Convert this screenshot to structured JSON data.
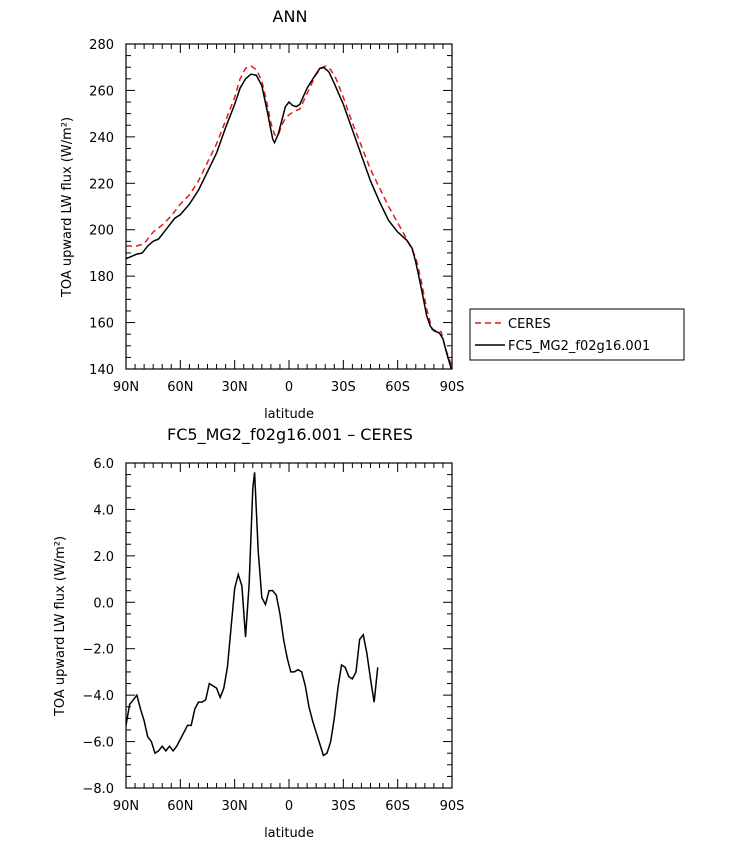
{
  "chart_data": [
    {
      "type": "line",
      "title": "ANN",
      "xlabel": "latitude",
      "ylabel": "TOA upward LW flux (W/m²)",
      "xlim": [
        90,
        -90
      ],
      "ylim": [
        140,
        280
      ],
      "x_ticks": [
        {
          "value": 90,
          "label": "90N"
        },
        {
          "value": 60,
          "label": "60N"
        },
        {
          "value": 30,
          "label": "30N"
        },
        {
          "value": 0,
          "label": "0"
        },
        {
          "value": -30,
          "label": "30S"
        },
        {
          "value": -60,
          "label": "60S"
        },
        {
          "value": -90,
          "label": "90S"
        }
      ],
      "y_ticks": [
        {
          "value": 280,
          "label": "280"
        },
        {
          "value": 260,
          "label": "260"
        },
        {
          "value": 240,
          "label": "240"
        },
        {
          "value": 220,
          "label": "220"
        },
        {
          "value": 200,
          "label": "200"
        },
        {
          "value": 180,
          "label": "180"
        },
        {
          "value": 160,
          "label": "160"
        },
        {
          "value": 140,
          "label": "140"
        }
      ],
      "legend": {
        "placement": "right"
      },
      "series": [
        {
          "name": "CERES",
          "color": "#e8191a",
          "dash": true,
          "points": [
            [
              90,
              193
            ],
            [
              84,
              193
            ],
            [
              80,
              194
            ],
            [
              75,
              199
            ],
            [
              70,
              202
            ],
            [
              65,
              206
            ],
            [
              60,
              211
            ],
            [
              55,
              215
            ],
            [
              50,
              221
            ],
            [
              45,
              229
            ],
            [
              40,
              237
            ],
            [
              35,
              247
            ],
            [
              30,
              257
            ],
            [
              27,
              265
            ],
            [
              24,
              269.5
            ],
            [
              21,
              270.5
            ],
            [
              18,
              269
            ],
            [
              15,
              264
            ],
            [
              12,
              254
            ],
            [
              10,
              246
            ],
            [
              8,
              241
            ],
            [
              6,
              240.5
            ],
            [
              4,
              245
            ],
            [
              2,
              248
            ],
            [
              0,
              249.5
            ],
            [
              -3,
              251
            ],
            [
              -6,
              252
            ],
            [
              -9,
              257
            ],
            [
              -12,
              262
            ],
            [
              -15,
              267
            ],
            [
              -18,
              269.5
            ],
            [
              -20,
              270.5
            ],
            [
              -23,
              269
            ],
            [
              -26,
              265
            ],
            [
              -30,
              257
            ],
            [
              -35,
              246
            ],
            [
              -40,
              236
            ],
            [
              -45,
              226
            ],
            [
              -50,
              218
            ],
            [
              -55,
              210
            ],
            [
              -60,
              203
            ],
            [
              -65,
              196
            ],
            [
              -70,
              188
            ],
            [
              -73,
              178
            ],
            [
              -76,
              166
            ],
            [
              -79,
              157
            ],
            [
              -82,
              156.5
            ],
            [
              -84,
              156
            ],
            [
              -86,
              150
            ],
            [
              -88,
              145
            ],
            [
              -90,
              141
            ]
          ]
        },
        {
          "name": "FC5_MG2_f02g16.001",
          "color": "#000000",
          "dash": false,
          "points": [
            [
              90,
              187.5
            ],
            [
              87,
              188.5
            ],
            [
              84,
              189.5
            ],
            [
              81,
              190
            ],
            [
              78,
              193
            ],
            [
              75,
              195
            ],
            [
              72,
              196
            ],
            [
              69,
              199
            ],
            [
              66,
              202
            ],
            [
              63,
              205
            ],
            [
              60,
              206.5
            ],
            [
              55,
              211
            ],
            [
              50,
              217
            ],
            [
              45,
              225
            ],
            [
              40,
              233
            ],
            [
              35,
              244
            ],
            [
              30,
              254
            ],
            [
              27,
              261
            ],
            [
              24,
              265
            ],
            [
              21,
              267
            ],
            [
              18,
              266.5
            ],
            [
              15,
              262
            ],
            [
              12,
              251
            ],
            [
              10,
              243
            ],
            [
              9,
              239
            ],
            [
              8,
              237.5
            ],
            [
              6,
              241
            ],
            [
              4,
              247
            ],
            [
              2,
              253
            ],
            [
              0,
              255
            ],
            [
              -2,
              253.5
            ],
            [
              -4,
              253
            ],
            [
              -6,
              254
            ],
            [
              -10,
              261
            ],
            [
              -14,
              266
            ],
            [
              -17,
              269.5
            ],
            [
              -19,
              270
            ],
            [
              -22,
              268
            ],
            [
              -25,
              263
            ],
            [
              -30,
              254
            ],
            [
              -35,
              243
            ],
            [
              -40,
              232
            ],
            [
              -45,
              221
            ],
            [
              -50,
              212
            ],
            [
              -55,
              204
            ],
            [
              -60,
              199
            ],
            [
              -65,
              195.5
            ],
            [
              -68,
              192
            ],
            [
              -70,
              186
            ],
            [
              -73,
              175
            ],
            [
              -76,
              163
            ],
            [
              -78,
              158.5
            ],
            [
              -80,
              156.5
            ],
            [
              -83,
              155.5
            ],
            [
              -85,
              153
            ],
            [
              -87,
              147
            ],
            [
              -90,
              139
            ]
          ]
        }
      ]
    },
    {
      "type": "line",
      "title": "FC5_MG2_f02g16.001 – CERES",
      "xlabel": "latitude",
      "ylabel": "TOA upward LW flux (W/m²)",
      "xlim": [
        90,
        -90
      ],
      "ylim": [
        -8.0,
        6.0
      ],
      "x_ticks": [
        {
          "value": 90,
          "label": "90N"
        },
        {
          "value": 60,
          "label": "60N"
        },
        {
          "value": 30,
          "label": "30N"
        },
        {
          "value": 0,
          "label": "0"
        },
        {
          "value": -30,
          "label": "30S"
        },
        {
          "value": -60,
          "label": "60S"
        },
        {
          "value": -90,
          "label": "90S"
        }
      ],
      "y_ticks": [
        {
          "value": 6,
          "label": "6.0"
        },
        {
          "value": 4,
          "label": "4.0"
        },
        {
          "value": 2,
          "label": "2.0"
        },
        {
          "value": 0,
          "label": "0.0"
        },
        {
          "value": -2,
          "label": "−2.0"
        },
        {
          "value": -4,
          "label": "−4.0"
        },
        {
          "value": -6,
          "label": "−6.0"
        },
        {
          "value": -8,
          "label": "−8.0"
        }
      ],
      "series": [
        {
          "color": "#000000",
          "dash": false,
          "points": [
            [
              90,
              -5.3
            ],
            [
              88,
              -4.4
            ],
            [
              86,
              -4.2
            ],
            [
              84,
              -4.0
            ],
            [
              82,
              -4.6
            ],
            [
              80,
              -5.1
            ],
            [
              78,
              -5.8
            ],
            [
              76,
              -6.0
            ],
            [
              74,
              -6.5
            ],
            [
              72,
              -6.4
            ],
            [
              70,
              -6.2
            ],
            [
              68,
              -6.4
            ],
            [
              66,
              -6.2
            ],
            [
              64,
              -6.4
            ],
            [
              62,
              -6.2
            ],
            [
              60,
              -5.9
            ],
            [
              58,
              -5.6
            ],
            [
              56,
              -5.3
            ],
            [
              54,
              -5.3
            ],
            [
              52,
              -4.6
            ],
            [
              50,
              -4.3
            ],
            [
              48,
              -4.3
            ],
            [
              46,
              -4.2
            ],
            [
              44,
              -3.5
            ],
            [
              42,
              -3.6
            ],
            [
              40,
              -3.7
            ],
            [
              38,
              -4.1
            ],
            [
              36,
              -3.7
            ],
            [
              34,
              -2.8
            ],
            [
              32,
              -1.1
            ],
            [
              30,
              0.6
            ],
            [
              28,
              1.2
            ],
            [
              26,
              0.7
            ],
            [
              24,
              -1.5
            ],
            [
              22,
              0.8
            ],
            [
              20,
              4.9
            ],
            [
              19,
              5.6
            ],
            [
              17,
              2.2
            ],
            [
              15,
              0.2
            ],
            [
              13,
              -0.1
            ],
            [
              11,
              0.5
            ],
            [
              9,
              0.5
            ],
            [
              7,
              0.3
            ],
            [
              5,
              -0.5
            ],
            [
              3,
              -1.6
            ],
            [
              1,
              -2.4
            ],
            [
              -1,
              -3.0
            ],
            [
              -3,
              -3.0
            ],
            [
              -5,
              -2.9
            ],
            [
              -7,
              -3.0
            ],
            [
              -9,
              -3.6
            ],
            [
              -11,
              -4.5
            ],
            [
              -13,
              -5.1
            ],
            [
              -15,
              -5.6
            ],
            [
              -17,
              -6.1
            ],
            [
              -19,
              -6.6
            ],
            [
              -21,
              -6.5
            ],
            [
              -23,
              -6.0
            ],
            [
              -25,
              -5.0
            ],
            [
              -27,
              -3.7
            ],
            [
              -29,
              -2.7
            ],
            [
              -31,
              -2.8
            ],
            [
              -33,
              -3.2
            ],
            [
              -35,
              -3.3
            ],
            [
              -37,
              -3.0
            ],
            [
              -39,
              -1.6
            ],
            [
              -41,
              -1.4
            ],
            [
              -43,
              -2.2
            ],
            [
              -45,
              -3.3
            ],
            [
              -47,
              -4.3
            ],
            [
              -49,
              -2.8
            ]
          ]
        }
      ]
    }
  ]
}
